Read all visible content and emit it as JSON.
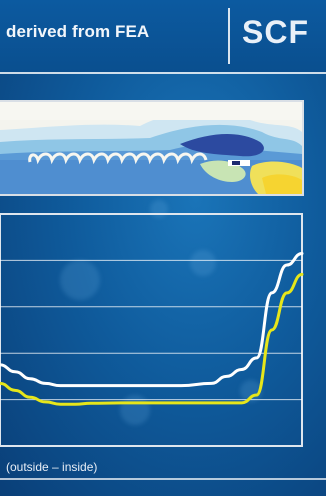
{
  "header": {
    "title": "derived from FEA",
    "badge": "SCF"
  },
  "chart_data": {
    "type": "line",
    "title": "",
    "xlabel": "(outside – inside)",
    "ylabel": "",
    "x": [
      0,
      5,
      10,
      15,
      20,
      25,
      30,
      40,
      50,
      60,
      70,
      75,
      80,
      85,
      90,
      95,
      100
    ],
    "xlim": [
      0,
      100
    ],
    "ylim": [
      0,
      5
    ],
    "grid": true,
    "series": [
      {
        "color": "#ffffff",
        "values": [
          1.75,
          1.6,
          1.45,
          1.35,
          1.3,
          1.3,
          1.3,
          1.3,
          1.3,
          1.3,
          1.35,
          1.5,
          1.65,
          1.9,
          3.3,
          3.9,
          4.15
        ]
      },
      {
        "color": "#e6e61a",
        "values": [
          1.35,
          1.2,
          1.05,
          0.95,
          0.9,
          0.9,
          0.92,
          0.93,
          0.93,
          0.93,
          0.93,
          0.93,
          0.93,
          1.1,
          2.5,
          3.3,
          3.7
        ]
      }
    ]
  },
  "fea_image": {
    "colors": [
      "#2a3f9a",
      "#3b7fd0",
      "#8fc8e8",
      "#c9e6c0",
      "#f2e25a",
      "#ffffff"
    ]
  }
}
